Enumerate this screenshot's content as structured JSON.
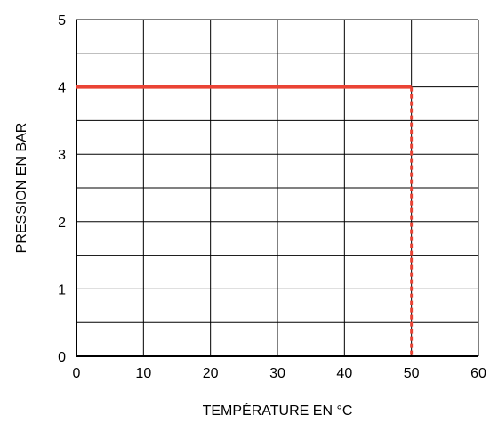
{
  "chart_data": {
    "type": "line",
    "title": "",
    "xlabel": "TEMPÉRATURE EN °C",
    "ylabel": "PRESSION EN BAR",
    "xlim": [
      0,
      60
    ],
    "ylim": [
      0,
      5
    ],
    "x_ticks": [
      "0",
      "10",
      "20",
      "30",
      "40",
      "50",
      "60"
    ],
    "y_ticks": [
      "0",
      "1",
      "2",
      "3",
      "4",
      "5"
    ],
    "grid": true,
    "minor_horizontal_grid_step": 0.5,
    "series": [
      {
        "x": [
          0,
          50
        ],
        "y": [
          4,
          4
        ],
        "style": "solid",
        "color": "#ea4335"
      },
      {
        "x": [
          50,
          50
        ],
        "y": [
          4,
          0
        ],
        "style": "dashed",
        "color": "#ea4335"
      }
    ]
  }
}
